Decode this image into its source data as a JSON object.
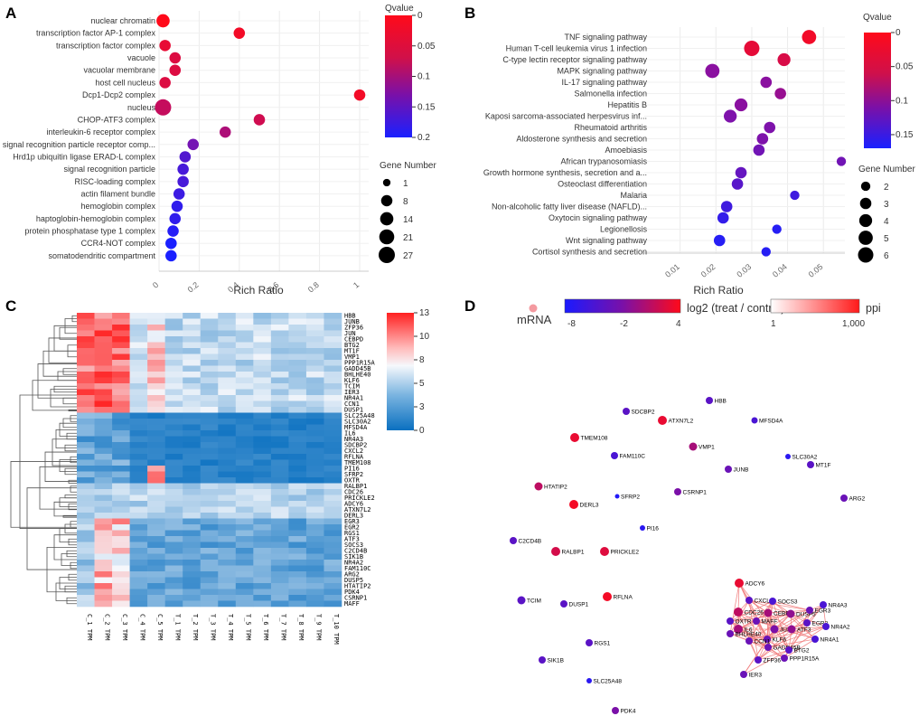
{
  "panels": {
    "a": "A",
    "b": "B",
    "c": "C",
    "d": "D"
  },
  "panel_a": {
    "xlabel": "Rich Ratio",
    "legend_q_title": "Qvalue",
    "legend_q_ticks": [
      "0",
      "0.05",
      "0.1",
      "0.15",
      "0.2"
    ],
    "legend_g_title": "Gene Number",
    "legend_g_values": [
      "1",
      "8",
      "14",
      "21",
      "27"
    ],
    "x_ticks": [
      "0",
      "0.2",
      "0.4",
      "0.6",
      "0.8",
      "1"
    ],
    "terms": [
      {
        "label": "nuclear chromatin",
        "x": 0.02,
        "g": 14,
        "q": 0.0
      },
      {
        "label": "transcription factor AP-1 complex",
        "x": 0.4,
        "g": 8,
        "q": 0.01
      },
      {
        "label": "transcription factor complex",
        "x": 0.03,
        "g": 8,
        "q": 0.02
      },
      {
        "label": "vacuole",
        "x": 0.08,
        "g": 8,
        "q": 0.03
      },
      {
        "label": "vacuolar membrane",
        "x": 0.08,
        "g": 8,
        "q": 0.03
      },
      {
        "label": "host cell nucleus",
        "x": 0.03,
        "g": 8,
        "q": 0.03
      },
      {
        "label": "Dcp1-Dcp2 complex",
        "x": 1.0,
        "g": 8,
        "q": 0.01
      },
      {
        "label": "nucleus",
        "x": 0.02,
        "g": 27,
        "q": 0.05
      },
      {
        "label": "CHOP-ATF3 complex",
        "x": 0.5,
        "g": 8,
        "q": 0.04
      },
      {
        "label": "interleukin-6 receptor complex",
        "x": 0.33,
        "g": 8,
        "q": 0.07
      },
      {
        "label": "signal recognition particle receptor comp...",
        "x": 0.17,
        "g": 8,
        "q": 0.12
      },
      {
        "label": "Hrd1p ubiquitin ligase ERAD-L complex",
        "x": 0.13,
        "g": 8,
        "q": 0.15
      },
      {
        "label": "signal recognition particle",
        "x": 0.12,
        "g": 8,
        "q": 0.16
      },
      {
        "label": "RISC-loading complex",
        "x": 0.12,
        "g": 8,
        "q": 0.16
      },
      {
        "label": "actin filament bundle",
        "x": 0.1,
        "g": 8,
        "q": 0.17
      },
      {
        "label": "hemoglobin complex",
        "x": 0.09,
        "g": 8,
        "q": 0.18
      },
      {
        "label": "haptoglobin-hemoglobin complex",
        "x": 0.08,
        "g": 8,
        "q": 0.18
      },
      {
        "label": "protein phosphatase type 1 complex",
        "x": 0.07,
        "g": 8,
        "q": 0.19
      },
      {
        "label": "CCR4-NOT complex",
        "x": 0.06,
        "g": 8,
        "q": 0.2
      },
      {
        "label": "somatodendritic compartment",
        "x": 0.06,
        "g": 8,
        "q": 0.2
      }
    ]
  },
  "panel_b": {
    "xlabel": "Rich Ratio",
    "legend_q_title": "Qvalue",
    "legend_q_ticks": [
      "0",
      "0.05",
      "0.1",
      "0.15"
    ],
    "legend_g_title": "Gene Number",
    "legend_g_values": [
      "2",
      "3",
      "4",
      "5",
      "6"
    ],
    "x_ticks": [
      "0.01",
      "0.02",
      "0.03",
      "0.04",
      "0.05"
    ],
    "terms": [
      {
        "label": "TNF signaling pathway",
        "x": 0.046,
        "g": 5,
        "q": 0.01
      },
      {
        "label": "Human T-cell leukemia virus 1 infection",
        "x": 0.03,
        "g": 6,
        "q": 0.02
      },
      {
        "label": "C-type lectin receptor signaling pathway",
        "x": 0.039,
        "g": 4,
        "q": 0.03
      },
      {
        "label": "MAPK signaling pathway",
        "x": 0.019,
        "g": 5,
        "q": 0.09
      },
      {
        "label": "IL-17 signaling pathway",
        "x": 0.034,
        "g": 3,
        "q": 0.09
      },
      {
        "label": "Salmonella infection",
        "x": 0.038,
        "g": 3,
        "q": 0.08
      },
      {
        "label": "Hepatitis B",
        "x": 0.027,
        "g": 4,
        "q": 0.09
      },
      {
        "label": "Kaposi sarcoma-associated herpesvirus inf...",
        "x": 0.024,
        "g": 4,
        "q": 0.1
      },
      {
        "label": "Rheumatoid arthritis",
        "x": 0.035,
        "g": 3,
        "q": 0.1
      },
      {
        "label": "Aldosterone synthesis and secretion",
        "x": 0.033,
        "g": 3,
        "q": 0.1
      },
      {
        "label": "Amoebiasis",
        "x": 0.032,
        "g": 3,
        "q": 0.11
      },
      {
        "label": "African trypanosomiasis",
        "x": 0.055,
        "g": 2,
        "q": 0.11
      },
      {
        "label": "Growth hormone synthesis, secretion and a...",
        "x": 0.027,
        "g": 3,
        "q": 0.12
      },
      {
        "label": "Osteoclast differentiation",
        "x": 0.026,
        "g": 3,
        "q": 0.13
      },
      {
        "label": "Malaria",
        "x": 0.042,
        "g": 2,
        "q": 0.15
      },
      {
        "label": "Non-alcoholic fatty liver disease (NAFLD)...",
        "x": 0.023,
        "g": 3,
        "q": 0.15
      },
      {
        "label": "Oxytocin signaling pathway",
        "x": 0.022,
        "g": 3,
        "q": 0.16
      },
      {
        "label": "Legionellosis",
        "x": 0.037,
        "g": 2,
        "q": 0.17
      },
      {
        "label": "Wnt signaling pathway",
        "x": 0.021,
        "g": 3,
        "q": 0.17
      },
      {
        "label": "Cortisol synthesis and secretion",
        "x": 0.034,
        "g": 2,
        "q": 0.17
      }
    ]
  },
  "panel_c": {
    "legend_ticks": [
      "13",
      "10",
      "8",
      "5",
      "3",
      "0"
    ],
    "genes": [
      "HBB",
      "JUNB",
      "ZFP36",
      "JUN",
      "CEBPD",
      "BTG2",
      "MT1F",
      "VMP1",
      "PPP1R15A",
      "GADD45B",
      "BHLHE40",
      "KLF6",
      "TCIM",
      "IER3",
      "NR4A1",
      "CCN1",
      "DUSP1",
      "SLC25A48",
      "SLC30A2",
      "MFSD4A",
      "IL6",
      "NR4A3",
      "SDCBP2",
      "CXCL2",
      "RFLNA",
      "TMEM108",
      "PI16",
      "SFRP2",
      "OXTR",
      "RALBP1",
      "CDC26",
      "PRICKLE2",
      "ADCY6",
      "ATXN7L2",
      "DERL3",
      "EGR3",
      "EGR2",
      "RGS1",
      "ATF3",
      "SOCS3",
      "C2CD4B",
      "SIK1B",
      "NR4A2",
      "FAM110C",
      "ARG2",
      "DUSP5",
      "HTATIP2",
      "PDK4",
      "CSRNP1",
      "MAFF"
    ],
    "columns": [
      "C_1 TPM",
      "C_2 TPM",
      "C_3 TPM",
      "C_4 TPM",
      "C_5 TPM",
      "T_1 TPM",
      "T_2 TPM",
      "T_3 TPM",
      "T_4 TPM",
      "T_5 TPM",
      "T_6 TPM",
      "T_7 TPM",
      "T_8 TPM",
      "T_9 TPM",
      "T_10 TPM"
    ]
  },
  "panel_d": {
    "mrna_label": "mRNA",
    "log2_label": "log2 (treat / control)",
    "log2_ticks": [
      "-8",
      "-2",
      "4"
    ],
    "ppi_label": "ppi",
    "ppi_ticks": [
      "1",
      "1,000"
    ],
    "nodes": [
      {
        "name": "HBB",
        "v": -4,
        "s": 4
      },
      {
        "name": "SDCBP2",
        "v": -4,
        "s": 4
      },
      {
        "name": "ATXN7L2",
        "v": 3,
        "s": 5
      },
      {
        "name": "MFSD4A",
        "v": -5,
        "s": 3.5
      },
      {
        "name": "TMEM108",
        "v": 3,
        "s": 5
      },
      {
        "name": "VMP1",
        "v": 0,
        "s": 4.5
      },
      {
        "name": "FAM110C",
        "v": -5,
        "s": 4
      },
      {
        "name": "SLC30A2",
        "v": -7,
        "s": 3
      },
      {
        "name": "MT1F",
        "v": -4,
        "s": 4
      },
      {
        "name": "JUNB",
        "v": -3,
        "s": 4
      },
      {
        "name": "HTATIP2",
        "v": 1,
        "s": 4.5
      },
      {
        "name": "CSRNP1",
        "v": -2,
        "s": 4
      },
      {
        "name": "DERL3",
        "v": 3.5,
        "s": 5
      },
      {
        "name": "SFRP2",
        "v": -7.5,
        "s": 2.5
      },
      {
        "name": "ARG2",
        "v": -3,
        "s": 4
      },
      {
        "name": "PI16",
        "v": -7,
        "s": 3
      },
      {
        "name": "C2CD4B",
        "v": -4,
        "s": 4
      },
      {
        "name": "RALBP1",
        "v": 2,
        "s": 5
      },
      {
        "name": "PRICKLE2",
        "v": 2.5,
        "s": 5
      },
      {
        "name": "ADCY6",
        "v": 3,
        "s": 5
      },
      {
        "name": "TCIM",
        "v": -4,
        "s": 4.5
      },
      {
        "name": "DUSP1",
        "v": -4,
        "s": 4
      },
      {
        "name": "RFLNA",
        "v": 3.5,
        "s": 5
      },
      {
        "name": "RGS1",
        "v": -4,
        "s": 4
      },
      {
        "name": "SIK1B",
        "v": -4,
        "s": 4
      },
      {
        "name": "SLC25A48",
        "v": -7,
        "s": 3
      },
      {
        "name": "IER3",
        "v": -3,
        "s": 4
      },
      {
        "name": "PDK4",
        "v": -2,
        "s": 4
      },
      {
        "name": "CXCL2",
        "v": -4,
        "s": 4
      },
      {
        "name": "SOCS3",
        "v": -5,
        "s": 4
      },
      {
        "name": "NR4A3",
        "v": -5,
        "s": 4
      },
      {
        "name": "CDC26",
        "v": 1,
        "s": 5
      },
      {
        "name": "CEBPD",
        "v": 0,
        "s": 4.5
      },
      {
        "name": "DUSP5",
        "v": -1,
        "s": 4.5
      },
      {
        "name": "EGR3",
        "v": -3,
        "s": 4
      },
      {
        "name": "OXTR",
        "v": -4,
        "s": 4
      },
      {
        "name": "MAFF",
        "v": -3,
        "s": 4
      },
      {
        "name": "EGR2",
        "v": -4,
        "s": 4
      },
      {
        "name": "IL6",
        "v": 0,
        "s": 5
      },
      {
        "name": "JUN",
        "v": -2,
        "s": 4.5
      },
      {
        "name": "ATF3",
        "v": -1,
        "s": 4.5
      },
      {
        "name": "NR4A2",
        "v": -5,
        "s": 4
      },
      {
        "name": "BHLHE40",
        "v": -3,
        "s": 4
      },
      {
        "name": "KLF6",
        "v": -3,
        "s": 4
      },
      {
        "name": "CCN1",
        "v": -3,
        "s": 4
      },
      {
        "name": "NR4A1",
        "v": -5,
        "s": 4
      },
      {
        "name": "GADD45B",
        "v": -3,
        "s": 4
      },
      {
        "name": "BTG2",
        "v": -4,
        "s": 4
      },
      {
        "name": "PPP1R15A",
        "v": -3,
        "s": 4
      },
      {
        "name": "ZFP36",
        "v": -4,
        "s": 4
      }
    ]
  },
  "colors": {
    "q_low": "#ff1a1a",
    "q_high": "#1a1aff",
    "hm_high": "#ff2020",
    "hm_mid": "#f4f8fc",
    "hm_low": "#0a70c0"
  }
}
